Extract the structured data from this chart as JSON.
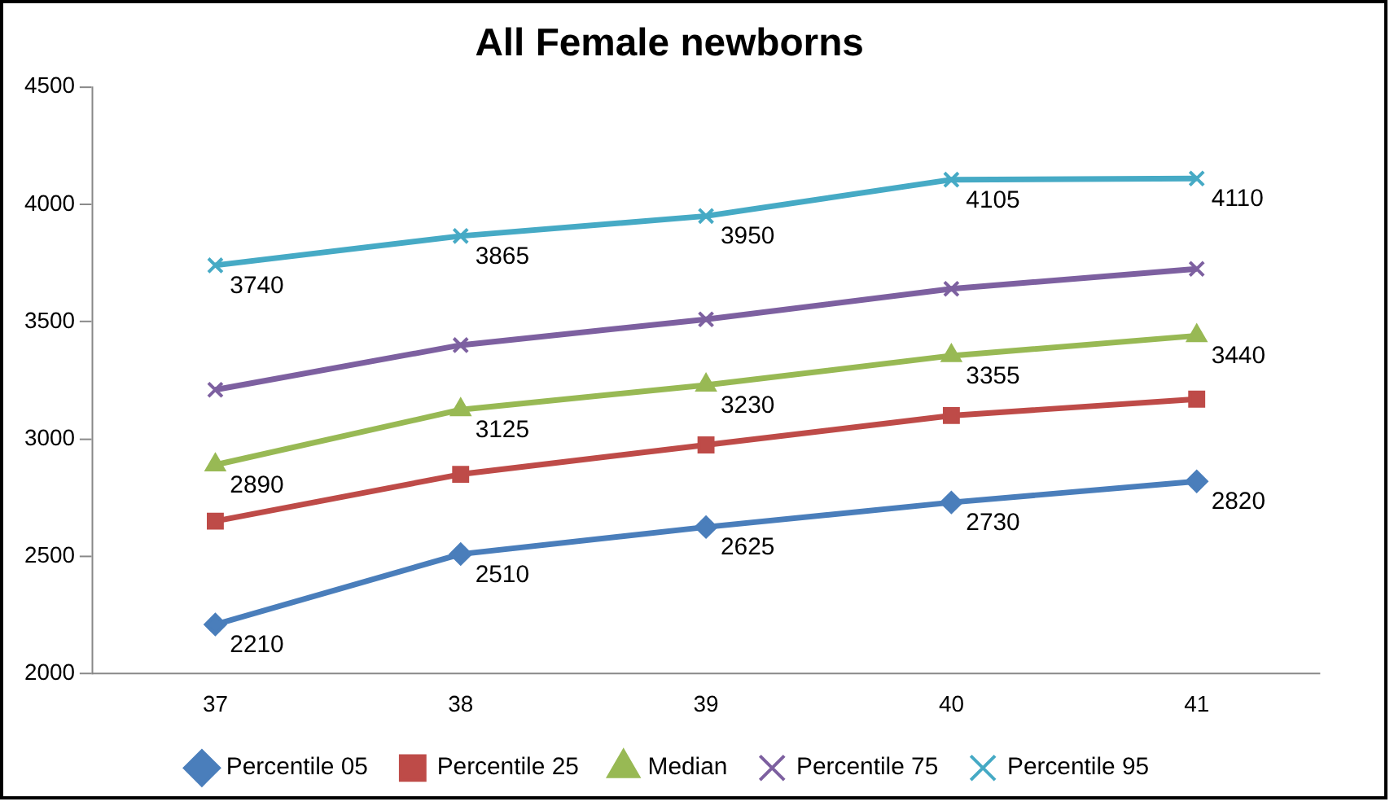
{
  "chart_data": {
    "type": "line",
    "title": "All Female newborns",
    "categories": [
      "37",
      "38",
      "39",
      "40",
      "41"
    ],
    "series": [
      {
        "name": "Percentile 05",
        "color": "#4a7ebb",
        "marker": "diamond",
        "values": [
          2210,
          2510,
          2625,
          2730,
          2820
        ],
        "value_labels": [
          "2210",
          "2510",
          "2625",
          "2730",
          "2820"
        ]
      },
      {
        "name": "Percentile 25",
        "color": "#be4b48",
        "marker": "square",
        "values": [
          2650,
          2850,
          2975,
          3100,
          3170
        ]
      },
      {
        "name": "Median",
        "color": "#98b954",
        "marker": "triangle",
        "values": [
          2890,
          3125,
          3230,
          3355,
          3440
        ],
        "value_labels": [
          "2890",
          "3125",
          "3230",
          "3355",
          "3440"
        ]
      },
      {
        "name": "Percentile 75",
        "color": "#7d60a0",
        "marker": "cross",
        "values": [
          3210,
          3400,
          3510,
          3640,
          3725
        ]
      },
      {
        "name": "Percentile 95",
        "color": "#46aac5",
        "marker": "cross",
        "values": [
          3740,
          3865,
          3950,
          4105,
          4110
        ],
        "value_labels": [
          "3740",
          "3865",
          "3950",
          "4105",
          "4110"
        ]
      }
    ],
    "ylim": [
      2000,
      4500
    ],
    "yticks": [
      2000,
      2500,
      3000,
      3500,
      4000,
      4500
    ],
    "grid": false,
    "legend": "bottom",
    "line_style": "solid"
  }
}
